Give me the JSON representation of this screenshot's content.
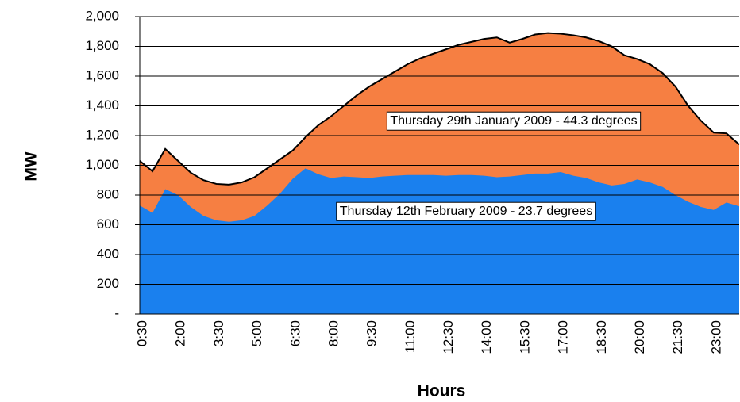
{
  "chart_data": {
    "type": "area",
    "xlabel": "Hours",
    "ylabel": "MW",
    "categories": [
      "0:30",
      null,
      null,
      "2:00",
      null,
      null,
      "3:30",
      null,
      null,
      "5:00",
      null,
      null,
      "6:30",
      null,
      null,
      "8:00",
      null,
      null,
      "9:30",
      null,
      null,
      "11:00",
      null,
      null,
      "12:30",
      null,
      null,
      "14:00",
      null,
      null,
      "15:30",
      null,
      null,
      "17:00",
      null,
      null,
      "18:30",
      null,
      null,
      "20:00",
      null,
      null,
      "21:30",
      null,
      null,
      "23:00",
      null,
      null
    ],
    "series": [
      {
        "name": "Thursday 29th January 2009 - 44.3 degrees",
        "color": "#f67f42",
        "values": [
          1030,
          960,
          1110,
          1030,
          950,
          900,
          875,
          870,
          885,
          920,
          980,
          1040,
          1100,
          1190,
          1270,
          1330,
          1400,
          1470,
          1530,
          1580,
          1630,
          1680,
          1720,
          1750,
          1780,
          1810,
          1830,
          1850,
          1860,
          1825,
          1850,
          1880,
          1890,
          1885,
          1875,
          1860,
          1835,
          1800,
          1740,
          1715,
          1680,
          1620,
          1530,
          1400,
          1300,
          1220,
          1215,
          1140
        ]
      },
      {
        "name": "Thursday 12th February 2009 - 23.7 degrees",
        "color": "#1a80ee",
        "values": [
          730,
          680,
          840,
          800,
          720,
          660,
          630,
          620,
          630,
          660,
          730,
          810,
          910,
          980,
          940,
          915,
          925,
          920,
          915,
          925,
          930,
          935,
          935,
          935,
          930,
          935,
          935,
          930,
          920,
          925,
          935,
          945,
          945,
          955,
          930,
          915,
          885,
          865,
          875,
          905,
          885,
          855,
          800,
          755,
          720,
          700,
          750,
          725
        ]
      }
    ],
    "ylim": [
      0,
      2000
    ],
    "yticks": [
      {
        "value": 0,
        "label": "-"
      },
      200,
      400,
      600,
      800,
      {
        "value": 1000,
        "label": "1,000"
      },
      {
        "value": 1200,
        "label": "1,200"
      },
      {
        "value": 1400,
        "label": "1,400"
      },
      {
        "value": 1600,
        "label": "1,600"
      },
      {
        "value": 1800,
        "label": "1,800"
      },
      {
        "value": 2000,
        "label": "2,000"
      }
    ],
    "grid": true
  }
}
